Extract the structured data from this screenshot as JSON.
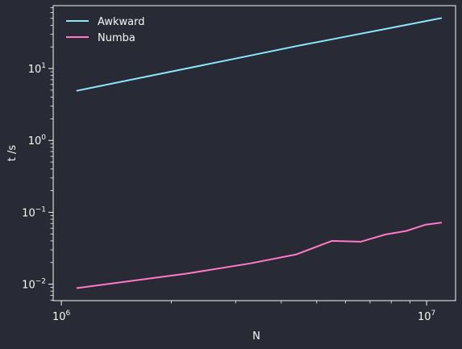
{
  "chart_data": {
    "type": "line",
    "xlabel": "N",
    "ylabel": "t /s",
    "xscale": "log",
    "yscale": "log",
    "xlim": [
      950000,
      12000000
    ],
    "ylim": [
      0.0059,
      75
    ],
    "grid": false,
    "legend_position": "top-left",
    "colors": {
      "background": "#282a36",
      "axes": "#f8f8f2",
      "text": "#f8f8f2"
    },
    "x_major_ticks": [
      {
        "value": 1000000,
        "base": "10",
        "exp": "6"
      },
      {
        "value": 10000000,
        "base": "10",
        "exp": "7"
      }
    ],
    "x_minor_ticks": [
      2000000,
      3000000,
      4000000,
      5000000,
      6000000,
      7000000,
      8000000,
      9000000
    ],
    "y_major_ticks": [
      {
        "value": 0.01,
        "base": "10",
        "exp": "−2"
      },
      {
        "value": 0.1,
        "base": "10",
        "exp": "−1"
      },
      {
        "value": 1,
        "base": "10",
        "exp": "0"
      },
      {
        "value": 10,
        "base": "10",
        "exp": "1"
      }
    ],
    "series": [
      {
        "name": "Awkward",
        "color": "#8be9fd",
        "x": [
          1100000,
          2200000,
          3300000,
          4400000,
          5500000,
          6600000,
          7700000,
          8800000,
          9900000,
          11000000
        ],
        "y": [
          4.9,
          10.0,
          15.2,
          20.5,
          25.5,
          30.5,
          35.5,
          40.5,
          45.5,
          50.5
        ]
      },
      {
        "name": "Numba",
        "color": "#ff79c6",
        "x": [
          1100000,
          2200000,
          3300000,
          4400000,
          5500000,
          6600000,
          7700000,
          8800000,
          9900000,
          11000000
        ],
        "y": [
          0.0088,
          0.014,
          0.0195,
          0.026,
          0.04,
          0.039,
          0.049,
          0.055,
          0.067,
          0.072
        ]
      }
    ]
  }
}
